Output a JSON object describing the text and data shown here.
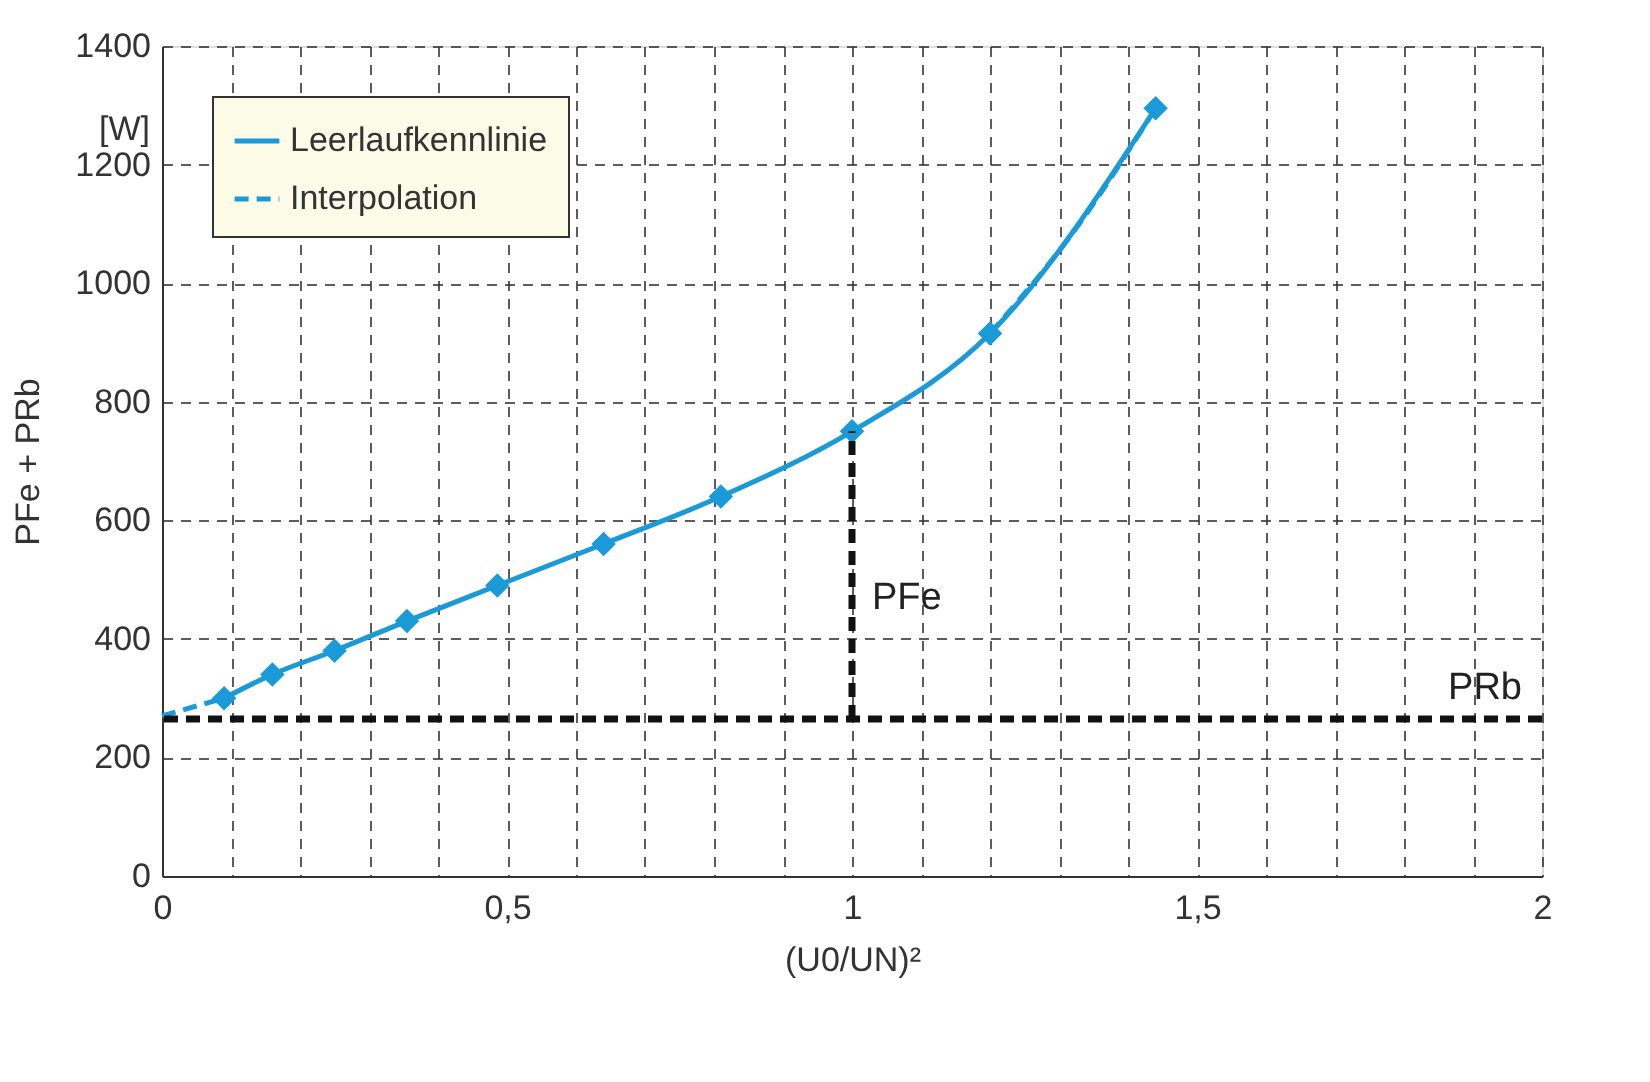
{
  "chart_data": {
    "type": "line",
    "xlabel": "(U0/UN)²",
    "ylabel": "PFe + PRb",
    "x": [
      0.09,
      0.16,
      0.25,
      0.355,
      0.486,
      0.64,
      0.81,
      1.0,
      1.2,
      1.44
    ],
    "series": [
      {
        "name": "Leerlaufkennlinie",
        "color": "#1a9ad6",
        "marker": "diamond",
        "line_style": "solid",
        "values": [
          300,
          340,
          380,
          430,
          490,
          560,
          640,
          750,
          915,
          1295
        ]
      },
      {
        "name": "Interpolation",
        "color": "#1a9ad6",
        "marker": "none",
        "line_style": "dashed",
        "x": [
          0,
          0.09,
          null,
          1.2,
          1.32,
          1.44
        ],
        "values": [
          270,
          300,
          null,
          915,
          1085,
          1295
        ]
      },
      {
        "type": "line",
        "color": "#111111",
        "marker": "none",
        "line_style": "dashed",
        "x": [
          1,
          1
        ],
        "values": [
          265,
          750
        ]
      }
    ],
    "xlim": [
      0,
      2
    ],
    "ylim": [
      0,
      1400
    ],
    "xticks": [
      0,
      {
        "value": 0.1,
        "label": null
      },
      {
        "value": 0.2,
        "label": null
      },
      {
        "value": 0.3,
        "label": null
      },
      {
        "value": 0.4,
        "label": null
      },
      {
        "value": 0.5,
        "label": "0,5"
      },
      {
        "value": 0.6,
        "label": null
      },
      {
        "value": 0.7,
        "label": null
      },
      {
        "value": 0.8,
        "label": null
      },
      {
        "value": 0.9,
        "label": null
      },
      1,
      {
        "value": 1.1,
        "label": null
      },
      {
        "value": 1.2,
        "label": null
      },
      {
        "value": 1.3,
        "label": null
      },
      {
        "value": 1.4,
        "label": null
      },
      {
        "value": 1.5,
        "label": "1,5"
      },
      {
        "value": 1.6,
        "label": null
      },
      {
        "value": 1.7,
        "label": null
      },
      {
        "value": 1.8,
        "label": null
      },
      {
        "value": 1.9,
        "label": null
      },
      2
    ],
    "yticks": [
      0,
      200,
      400,
      600,
      800,
      1000,
      1200,
      1400
    ],
    "ref_lines": [
      {
        "axis": "y",
        "value": 265,
        "label": "PRb",
        "color": "#111111",
        "line_style": "dashed"
      }
    ],
    "annotations": [
      "[W]",
      {
        "text": "PFe",
        "x": 1,
        "y": 470
      }
    ],
    "grid": true,
    "legend": "top left"
  }
}
